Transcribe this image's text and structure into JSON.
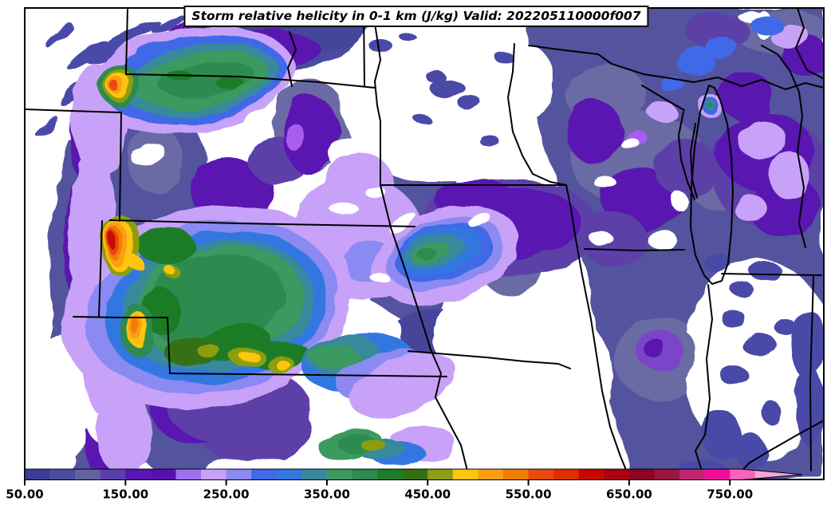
{
  "title": "Storm relative helicity in 0-1 km (J/kg) Valid: 202205110000f007",
  "colorbar": {
    "unit": "J/kg",
    "min_value": 50,
    "segment_step": 25,
    "tick_labels": [
      "50.00",
      "150.00",
      "250.00",
      "350.00",
      "450.00",
      "550.00",
      "650.00",
      "750.00"
    ],
    "tick_values": [
      50,
      150,
      250,
      350,
      450,
      550,
      650,
      750
    ],
    "segments": [
      {
        "from": 50,
        "color": "#3c3c94"
      },
      {
        "from": 75,
        "color": "#4c4c9e"
      },
      {
        "from": 100,
        "color": "#62629e"
      },
      {
        "from": 125,
        "color": "#5b3fa8"
      },
      {
        "from": 150,
        "color": "#5a16b0"
      },
      {
        "from": 175,
        "color": "#5712ae"
      },
      {
        "from": 200,
        "color": "#9e6ff0"
      },
      {
        "from": 225,
        "color": "#c8a2f8"
      },
      {
        "from": 250,
        "color": "#8a8af2"
      },
      {
        "from": 275,
        "color": "#4169e8"
      },
      {
        "from": 300,
        "color": "#3377e0"
      },
      {
        "from": 325,
        "color": "#38899b"
      },
      {
        "from": 350,
        "color": "#3a9a60"
      },
      {
        "from": 375,
        "color": "#2e8b50"
      },
      {
        "from": 400,
        "color": "#1e7c28"
      },
      {
        "from": 425,
        "color": "#356f15"
      },
      {
        "from": 450,
        "color": "#8c9e11"
      },
      {
        "from": 475,
        "color": "#fdc50f"
      },
      {
        "from": 500,
        "color": "#fb9d12"
      },
      {
        "from": 525,
        "color": "#f07d02"
      },
      {
        "from": 550,
        "color": "#e8490f"
      },
      {
        "from": 575,
        "color": "#dd3003"
      },
      {
        "from": 600,
        "color": "#c50801"
      },
      {
        "from": 625,
        "color": "#a90211"
      },
      {
        "from": 650,
        "color": "#8f0320"
      },
      {
        "from": 675,
        "color": "#9c1440"
      },
      {
        "from": 700,
        "color": "#c02573"
      },
      {
        "from": 725,
        "color": "#ef0e99"
      },
      {
        "from": 750,
        "color": "#f863bb"
      },
      {
        "from": 775,
        "color": "#fba4d5"
      }
    ],
    "arrow_note": "bar tapers to a right-pointing arrow beyond 775"
  },
  "map": {
    "background_color": "#ffffff",
    "border_color": "#000000",
    "region": "Central / Upper-Midwest United States with state borders, Missouri & Mississippi rivers, Great Lakes shorelines",
    "low_fill": "#52529e",
    "high_core_fill": "#c50801"
  }
}
